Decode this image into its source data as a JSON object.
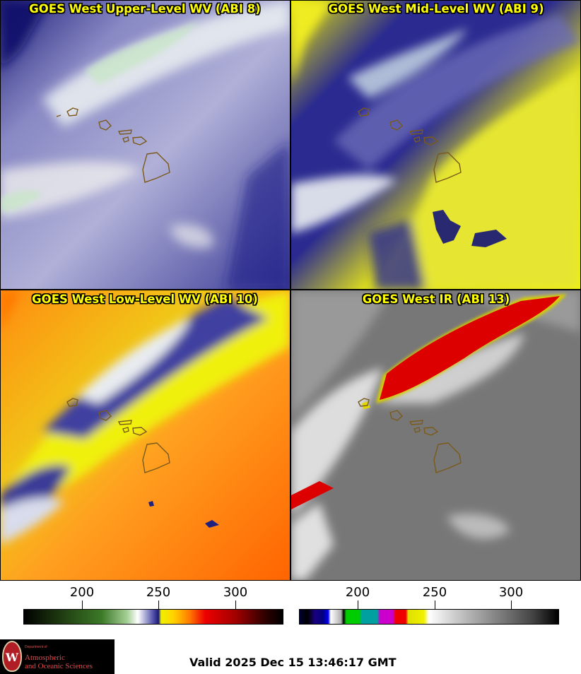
{
  "panels": [
    {
      "title": "GOES West Upper-Level WV (ABI 8)"
    },
    {
      "title": "GOES West Mid-Level WV (ABI 9)"
    },
    {
      "title": "GOES West Low-Level WV (ABI 10)"
    },
    {
      "title": "GOES West IR (ABI 13)"
    }
  ],
  "colorbars": [
    {
      "ticks": [
        "200",
        "250",
        "300"
      ]
    },
    {
      "ticks": [
        "200",
        "250",
        "300"
      ]
    }
  ],
  "logo": {
    "line1": "Department of",
    "line2": "Atmospheric",
    "line3": "and Oceanic Sciences",
    "seal": "W"
  },
  "valid_time": "Valid 2025 Dec 15 13:46:17 GMT",
  "colors": {
    "title_text": "#ffff00",
    "wv_blue": "#1a1a80",
    "wv_yellow": "#f2f200",
    "wv_orange": "#ff6a00",
    "ir_red": "#dd0000",
    "coastline": "#7a5a1a"
  }
}
